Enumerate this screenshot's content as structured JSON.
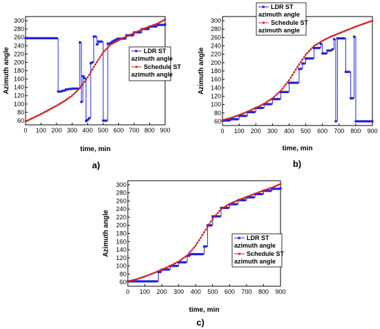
{
  "chart_data": [
    {
      "type": "line",
      "panel_label": "a)",
      "xlabel": "time, min",
      "ylabel": "Azimuth angle",
      "xlim": [
        0,
        900
      ],
      "ylim": [
        50,
        310
      ],
      "xticks": [
        0,
        100,
        200,
        300,
        400,
        500,
        600,
        700,
        800,
        900
      ],
      "yticks": [
        60,
        80,
        100,
        120,
        140,
        160,
        180,
        200,
        220,
        240,
        260,
        280,
        300
      ],
      "legend_position": "right-middle",
      "series": [
        {
          "name": "LDR ST azimuth angle",
          "color": "#2222dd",
          "marker": "square",
          "x": [
            0,
            200,
            210,
            240,
            260,
            280,
            300,
            330,
            350,
            360,
            370,
            380,
            390,
            400,
            410,
            420,
            430,
            440,
            450,
            460,
            470,
            480,
            490,
            500,
            510,
            520,
            530,
            540,
            550,
            560,
            570,
            580,
            590,
            600,
            650,
            700,
            750,
            800,
            850,
            900
          ],
          "y": [
            258,
            258,
            130,
            132,
            135,
            136,
            137,
            137,
            248,
            105,
            167,
            162,
            59,
            62,
            66,
            198,
            200,
            262,
            262,
            243,
            250,
            250,
            250,
            60,
            60,
            60,
            245,
            245,
            247,
            250,
            252,
            254,
            256,
            257,
            265,
            272,
            280,
            286,
            290,
            291
          ]
        },
        {
          "name": "Schedule ST azimuth angle",
          "color": "#cc2222",
          "marker": "dot",
          "x": [
            0,
            50,
            100,
            150,
            200,
            250,
            300,
            350,
            400,
            450,
            500,
            550,
            600,
            650,
            700,
            750,
            800,
            850,
            900
          ],
          "y": [
            58,
            67,
            76,
            86,
            96,
            107,
            120,
            138,
            164,
            195,
            224,
            243,
            253,
            262,
            270,
            279,
            286,
            293,
            303
          ]
        }
      ]
    },
    {
      "type": "line",
      "panel_label": "b)",
      "xlabel": "time, min",
      "ylabel": "Azimuth angle",
      "xlim": [
        0,
        900
      ],
      "ylim": [
        50,
        310
      ],
      "xticks": [
        0,
        100,
        200,
        300,
        400,
        500,
        600,
        700,
        800,
        900
      ],
      "yticks": [
        60,
        80,
        100,
        120,
        140,
        160,
        180,
        200,
        220,
        240,
        260,
        280,
        300
      ],
      "legend_position": "top-left",
      "series": [
        {
          "name": "LDR ST azimuth angle",
          "color": "#2222dd",
          "marker": "square",
          "x": [
            0,
            50,
            100,
            150,
            200,
            250,
            300,
            350,
            400,
            420,
            440,
            460,
            480,
            500,
            550,
            590,
            600,
            630,
            660,
            670,
            680,
            690,
            700,
            730,
            740,
            760,
            770,
            780,
            790,
            800,
            900
          ],
          "y": [
            62,
            65,
            73,
            82,
            92,
            101,
            113,
            130,
            152,
            152,
            152,
            185,
            198,
            210,
            235,
            245,
            222,
            229,
            232,
            256,
            60,
            258,
            258,
            258,
            178,
            178,
            115,
            115,
            262,
            60,
            60
          ]
        },
        {
          "name": "Schedule ST azimuth angle",
          "color": "#cc2222",
          "marker": "dot",
          "x": [
            0,
            50,
            100,
            150,
            200,
            250,
            300,
            350,
            400,
            450,
            500,
            550,
            600,
            650,
            700,
            750,
            800,
            850,
            900
          ],
          "y": [
            63,
            68,
            75,
            83,
            92,
            102,
            115,
            133,
            158,
            190,
            219,
            240,
            252,
            262,
            270,
            278,
            286,
            293,
            300
          ]
        }
      ]
    },
    {
      "type": "line",
      "panel_label": "c)",
      "xlabel": "time, min",
      "ylabel": "Azimuth angle",
      "xlim": [
        0,
        900
      ],
      "ylim": [
        50,
        310
      ],
      "xticks": [
        0,
        100,
        200,
        300,
        400,
        500,
        600,
        700,
        800,
        900
      ],
      "yticks": [
        60,
        80,
        100,
        120,
        140,
        160,
        180,
        200,
        220,
        240,
        260,
        280,
        300
      ],
      "legend_position": "bottom-right",
      "series": [
        {
          "name": "LDR ST azimuth angle",
          "color": "#2222dd",
          "marker": "square",
          "x": [
            0,
            170,
            180,
            200,
            250,
            300,
            350,
            370,
            400,
            440,
            450,
            460,
            470,
            500,
            550,
            600,
            650,
            700,
            750,
            800,
            850,
            900
          ],
          "y": [
            62,
            62,
            85,
            91,
            100,
            109,
            125,
            129,
            129,
            129,
            148,
            148,
            200,
            222,
            243,
            252,
            262,
            269,
            277,
            285,
            290,
            291
          ]
        },
        {
          "name": "Schedule ST azimuth angle",
          "color": "#cc2222",
          "marker": "dot",
          "x": [
            0,
            50,
            100,
            150,
            200,
            250,
            300,
            350,
            400,
            450,
            500,
            550,
            600,
            650,
            700,
            750,
            800,
            850,
            900
          ],
          "y": [
            62,
            67,
            74,
            82,
            91,
            100,
            111,
            126,
            150,
            183,
            216,
            240,
            253,
            262,
            270,
            278,
            286,
            293,
            302
          ]
        }
      ]
    }
  ]
}
